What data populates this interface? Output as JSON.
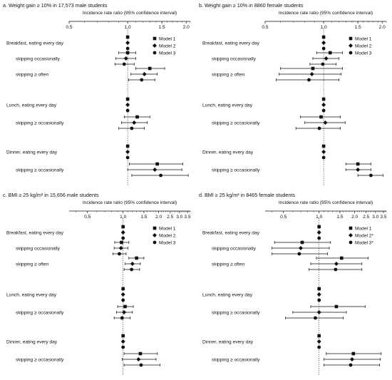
{
  "chart_data": [
    {
      "type": "forest",
      "title": "a. Weight gain ≥ 10% in 17,573 male students",
      "xlabel": "Incidence rate ratio (95% confidence interval)",
      "xscale": "log",
      "xlim": [
        0.5,
        2.1
      ],
      "xticks": [
        "0.5",
        "1.0",
        "1.5",
        "2.0"
      ],
      "reference_line": 1.0,
      "legend": [
        "Model 1",
        "Model 2",
        "Model 3"
      ],
      "groups": [
        {
          "label": "Breakfast, eating every day",
          "models": [
            {
              "est": 1.0,
              "lo": 1.0,
              "hi": 1.0
            },
            {
              "est": 1.0,
              "lo": 1.0,
              "hi": 1.0
            },
            {
              "est": 1.0,
              "lo": 1.0,
              "hi": 1.0
            }
          ]
        },
        {
          "label": "skipping occasionally",
          "models": [
            {
              "est": 1.0,
              "lo": 0.9,
              "hi": 1.1
            },
            {
              "est": 0.98,
              "lo": 0.87,
              "hi": 1.1
            },
            {
              "est": 0.96,
              "lo": 0.86,
              "hi": 1.08
            }
          ]
        },
        {
          "label": "skipping ≥ often",
          "models": [
            {
              "est": 1.3,
              "lo": 1.1,
              "hi": 1.55
            },
            {
              "est": 1.22,
              "lo": 1.04,
              "hi": 1.42
            },
            {
              "est": 1.18,
              "lo": 1.01,
              "hi": 1.38
            }
          ]
        },
        {
          "label": "Lunch, eating every day",
          "models": [
            {
              "est": 1.0,
              "lo": 1.0,
              "hi": 1.0
            },
            {
              "est": 1.0,
              "lo": 1.0,
              "hi": 1.0
            },
            {
              "est": 1.0,
              "lo": 1.0,
              "hi": 1.0
            }
          ]
        },
        {
          "label": "skipping ≥ occasionally",
          "models": [
            {
              "est": 1.12,
              "lo": 0.96,
              "hi": 1.3
            },
            {
              "est": 1.08,
              "lo": 0.93,
              "hi": 1.26
            },
            {
              "est": 1.05,
              "lo": 0.9,
              "hi": 1.22
            }
          ]
        },
        {
          "label": "Dinner, eating every day",
          "models": [
            {
              "est": 1.0,
              "lo": 1.0,
              "hi": 1.0
            },
            {
              "est": 1.0,
              "lo": 1.0,
              "hi": 1.0
            },
            {
              "est": 1.0,
              "lo": 1.0,
              "hi": 1.0
            }
          ]
        },
        {
          "label": "skipping ≥ occasionally",
          "models": [
            {
              "est": 1.42,
              "lo": 1.02,
              "hi": 1.92
            },
            {
              "est": 1.38,
              "lo": 1.0,
              "hi": 1.9
            },
            {
              "est": 1.48,
              "lo": 1.05,
              "hi": 2.05
            }
          ]
        }
      ]
    },
    {
      "type": "forest",
      "title": "b. Weight gain ≥ 10% in 8860 female students",
      "xlabel": "Incidence rate ratio (95% confidence interval)",
      "xscale": "log",
      "xlim": [
        0.5,
        2.1
      ],
      "xticks": [
        "0.5",
        "1.0",
        "1.5",
        "2.0"
      ],
      "reference_line": 1.0,
      "legend": [
        "Model 1",
        "Model 2",
        "Model 3"
      ],
      "groups": [
        {
          "label": "Breakfast, eating every day",
          "models": [
            {
              "est": 1.0,
              "lo": 1.0,
              "hi": 1.0
            },
            {
              "est": 1.0,
              "lo": 1.0,
              "hi": 1.0
            },
            {
              "est": 1.0,
              "lo": 1.0,
              "hi": 1.0
            }
          ]
        },
        {
          "label": "skipping occasionally",
          "models": [
            {
              "est": 1.08,
              "lo": 0.92,
              "hi": 1.25
            },
            {
              "est": 1.03,
              "lo": 0.88,
              "hi": 1.2
            },
            {
              "est": 0.99,
              "lo": 0.85,
              "hi": 1.16
            }
          ]
        },
        {
          "label": "skipping ≥ often",
          "models": [
            {
              "est": 0.88,
              "lo": 0.6,
              "hi": 1.25
            },
            {
              "est": 0.87,
              "lo": 0.59,
              "hi": 1.23
            },
            {
              "est": 0.84,
              "lo": 0.57,
              "hi": 1.2
            }
          ]
        },
        {
          "label": "Lunch, eating every day",
          "models": [
            {
              "est": 1.0,
              "lo": 1.0,
              "hi": 1.0
            },
            {
              "est": 1.0,
              "lo": 1.0,
              "hi": 1.0
            },
            {
              "est": 1.0,
              "lo": 1.0,
              "hi": 1.0
            }
          ]
        },
        {
          "label": "skipping ≥ occasionally",
          "models": [
            {
              "est": 0.97,
              "lo": 0.76,
              "hi": 1.22
            },
            {
              "est": 1.02,
              "lo": 0.8,
              "hi": 1.29
            },
            {
              "est": 0.95,
              "lo": 0.72,
              "hi": 1.22
            }
          ]
        },
        {
          "label": "Dinner, eating every day",
          "models": [
            {
              "est": 1.0,
              "lo": 1.0,
              "hi": 1.0
            },
            {
              "est": 1.0,
              "lo": 1.0,
              "hi": 1.0
            },
            {
              "est": 1.0,
              "lo": 1.0,
              "hi": 1.0
            }
          ]
        },
        {
          "label": "skipping ≥ occasionally",
          "models": [
            {
              "est": 1.5,
              "lo": 1.3,
              "hi": 1.75
            },
            {
              "est": 1.5,
              "lo": 1.3,
              "hi": 1.75
            },
            {
              "est": 1.75,
              "lo": 1.5,
              "hi": 2.02
            }
          ]
        }
      ]
    },
    {
      "type": "forest",
      "title": "c. BMI ≥ 25 kg/m² in 15,656 male students",
      "xlabel": "Incidence rate ratio (95% confidence interval)",
      "xscale": "log",
      "xlim": [
        0.35,
        3.7
      ],
      "xticks": [
        "0.5",
        "1.0",
        "1.5",
        "2.0",
        "2.5",
        "3.0",
        "3.5"
      ],
      "reference_line": 1.0,
      "legend": [
        "Model 1",
        "Model 2",
        "Model 3"
      ],
      "groups": [
        {
          "label": "Breakfast, eating every day",
          "models": [
            {
              "est": 1.0,
              "lo": 1.0,
              "hi": 1.0
            },
            {
              "est": 1.0,
              "lo": 1.0,
              "hi": 1.0
            },
            {
              "est": 1.0,
              "lo": 1.0,
              "hi": 1.0
            }
          ]
        },
        {
          "label": "skipping occasionally",
          "models": [
            {
              "est": 0.97,
              "lo": 0.85,
              "hi": 1.12
            },
            {
              "est": 0.96,
              "lo": 0.84,
              "hi": 1.1
            },
            {
              "est": 0.93,
              "lo": 0.82,
              "hi": 1.06
            }
          ]
        },
        {
          "label": "skipping ≥ often",
          "models": [
            {
              "est": 1.3,
              "lo": 1.12,
              "hi": 1.5
            },
            {
              "est": 1.2,
              "lo": 1.04,
              "hi": 1.4
            },
            {
              "est": 1.18,
              "lo": 1.02,
              "hi": 1.38
            }
          ]
        },
        {
          "label": "Lunch, eating every day",
          "models": [
            {
              "est": 1.0,
              "lo": 1.0,
              "hi": 1.0
            },
            {
              "est": 1.0,
              "lo": 1.0,
              "hi": 1.0
            },
            {
              "est": 1.0,
              "lo": 1.0,
              "hi": 1.0
            }
          ]
        },
        {
          "label": "skipping ≥ occasionally",
          "models": [
            {
              "est": 1.04,
              "lo": 0.9,
              "hi": 1.22
            },
            {
              "est": 1.02,
              "lo": 0.88,
              "hi": 1.2
            },
            {
              "est": 0.98,
              "lo": 0.84,
              "hi": 1.15
            }
          ]
        },
        {
          "label": "Dinner, eating every day",
          "models": [
            {
              "est": 1.0,
              "lo": 1.0,
              "hi": 1.0
            },
            {
              "est": 1.0,
              "lo": 1.0,
              "hi": 1.0
            },
            {
              "est": 1.0,
              "lo": 1.0,
              "hi": 1.0
            }
          ]
        },
        {
          "label": "skipping ≥ occasionally",
          "models": [
            {
              "est": 1.4,
              "lo": 1.02,
              "hi": 1.95
            },
            {
              "est": 1.35,
              "lo": 0.98,
              "hi": 1.9
            },
            {
              "est": 1.42,
              "lo": 1.02,
              "hi": 2.05
            }
          ]
        }
      ]
    },
    {
      "type": "forest",
      "title": "d. BMI ≥ 25 kg/m² in 8465 female students",
      "xlabel": "Incidence rate ratio (95% confidence interval)",
      "xscale": "log",
      "xlim": [
        0.35,
        3.7
      ],
      "xticks": [
        "0.5",
        "1.0",
        "1.5",
        "2.0",
        "2.5",
        "3.0",
        "3.5"
      ],
      "reference_line": 1.0,
      "legend": [
        "Model 1",
        "Model 2*",
        "Model 3*"
      ],
      "groups": [
        {
          "label": "Breakfast, eating every day",
          "models": [
            {
              "est": 1.0,
              "lo": 1.0,
              "hi": 1.0
            },
            {
              "est": 1.0,
              "lo": 1.0,
              "hi": 1.0
            },
            {
              "est": 1.0,
              "lo": 1.0,
              "hi": 1.0
            }
          ]
        },
        {
          "label": "skipping occasionally",
          "models": [
            {
              "est": 0.72,
              "lo": 0.42,
              "hi": 1.25
            },
            {
              "est": 0.7,
              "lo": 0.4,
              "hi": 1.22
            },
            {
              "est": 0.68,
              "lo": 0.4,
              "hi": 1.18
            }
          ]
        },
        {
          "label": "skipping ≥ often",
          "models": [
            {
              "est": 1.55,
              "lo": 0.95,
              "hi": 2.6
            },
            {
              "est": 1.4,
              "lo": 0.85,
              "hi": 2.3
            },
            {
              "est": 1.38,
              "lo": 0.82,
              "hi": 2.3
            }
          ]
        },
        {
          "label": "Lunch, eating every day",
          "models": [
            {
              "est": 1.0,
              "lo": 1.0,
              "hi": 1.0
            },
            {
              "est": 1.0,
              "lo": 1.0,
              "hi": 1.0
            },
            {
              "est": 1.0,
              "lo": 1.0,
              "hi": 1.0
            }
          ]
        },
        {
          "label": "skipping ≥ occasionally",
          "models": [
            {
              "est": 1.4,
              "lo": 0.85,
              "hi": 2.45
            },
            {
              "est": 1.0,
              "lo": 0.6,
              "hi": 1.7
            },
            {
              "est": 0.93,
              "lo": 0.52,
              "hi": 1.6
            }
          ]
        },
        {
          "label": "Dinner, eating every day",
          "models": [
            {
              "est": 1.0,
              "lo": 1.0,
              "hi": 1.0
            },
            {
              "est": 1.0,
              "lo": 1.0,
              "hi": 1.0
            },
            {
              "est": 1.0,
              "lo": 1.0,
              "hi": 1.0
            }
          ]
        },
        {
          "label": "skipping ≥ occasionally",
          "models": [
            {
              "est": 1.95,
              "lo": 1.15,
              "hi": 3.35
            },
            {
              "est": 1.9,
              "lo": 1.1,
              "hi": 3.3
            },
            {
              "est": 1.85,
              "lo": 1.1,
              "hi": 3.25
            }
          ]
        }
      ]
    }
  ]
}
